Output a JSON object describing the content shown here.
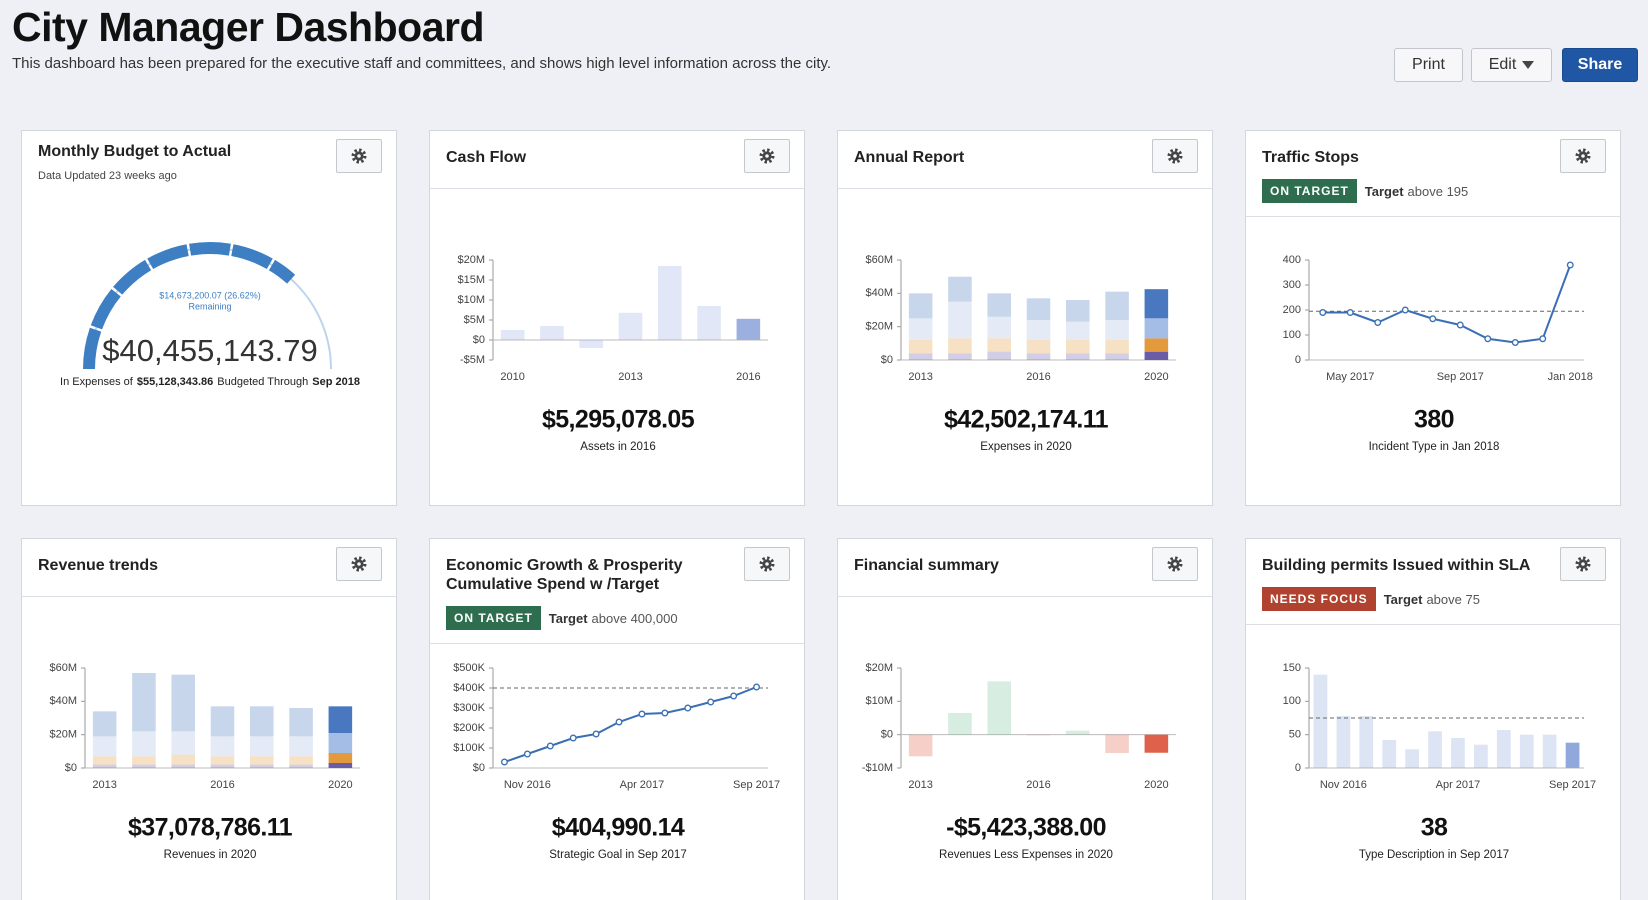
{
  "header": {
    "title": "City Manager Dashboard",
    "subtitle": "This dashboard has been prepared for the executive staff and committees, and shows high level information across the city."
  },
  "buttons": [
    "Print",
    "Edit",
    "Share"
  ],
  "cards": [
    {
      "type": "gauge",
      "title": "Monthly Budget to Actual",
      "subtitle": "Data Updated 23 weeks ago",
      "gauge": {
        "value": 40455143.79,
        "value_label": "$40,455,143.79",
        "max": 55128343.86,
        "max_label": "$55,128,343.86",
        "remaining_label": "$14,673,200.07 (26.62%)",
        "remaining_text": "Remaining",
        "color": "#3d7fc2",
        "track_color": "#bcd5ec"
      },
      "footnote": {
        "prefix": "In Expenses of",
        "middle": "Budgeted Through",
        "period": "Sep 2018"
      }
    },
    {
      "type": "bar",
      "title": "Cash Flow",
      "color": "#9cb0e0",
      "categories": [
        "2010",
        null,
        null,
        "2013",
        null,
        null,
        "2016"
      ],
      "values": [
        2500000,
        3500000,
        -2000000,
        6800000,
        18500000,
        8500000,
        5295078.05
      ],
      "ylim": [
        -5000000,
        20000000
      ],
      "yticks": [
        {
          "value": -5000000,
          "label": "-$5M"
        },
        {
          "value": 0,
          "label": "$0"
        },
        {
          "value": 5000000,
          "label": "$5M"
        },
        {
          "value": 10000000,
          "label": "$10M"
        },
        {
          "value": 15000000,
          "label": "$15M"
        },
        {
          "value": 20000000,
          "label": "$20M"
        }
      ],
      "kpi": "$5,295,078.05",
      "kpi_caption": "Assets in 2016"
    },
    {
      "type": "stacked-bar",
      "title": "Annual Report",
      "categories": [
        "2013",
        null,
        null,
        "2016",
        null,
        null,
        "2020"
      ],
      "series": [
        {
          "color": "#6b5ca8",
          "values": [
            4000000,
            4000000,
            5000000,
            4000000,
            4000000,
            4000000,
            5000000
          ]
        },
        {
          "color": "#e39a3d",
          "values": [
            8000000,
            9000000,
            8000000,
            8000000,
            8000000,
            8000000,
            8000000
          ]
        },
        {
          "color": "#a4bde6",
          "values": [
            13000000,
            22000000,
            13000000,
            12000000,
            11000000,
            12000000,
            12000000
          ]
        },
        {
          "color": "#4a78c0",
          "values": [
            15000000,
            15000000,
            14000000,
            13000000,
            13000000,
            17000000,
            17500000
          ]
        }
      ],
      "ylim": [
        0,
        60000000
      ],
      "yticks": [
        {
          "value": 0,
          "label": "$0"
        },
        {
          "value": 20000000,
          "label": "$20M"
        },
        {
          "value": 40000000,
          "label": "$40M"
        },
        {
          "value": 60000000,
          "label": "$60M"
        }
      ],
      "kpi": "$42,502,174.11",
      "kpi_caption": "Expenses in 2020"
    },
    {
      "type": "line",
      "title": "Traffic Stops",
      "status": "ON TARGET",
      "status_color": "#2e6e4e",
      "target_text": "Target",
      "target": {
        "value": 195,
        "label": "above 195"
      },
      "color": "#3a6fb5",
      "categories": [
        null,
        "May 2017",
        null,
        null,
        null,
        "Sep 2017",
        null,
        null,
        null,
        "Jan 2018"
      ],
      "values": [
        190,
        190,
        150,
        200,
        165,
        140,
        85,
        70,
        85,
        380
      ],
      "ylim": [
        0,
        400
      ],
      "yticks": [
        0,
        100,
        200,
        300,
        400
      ],
      "kpi": "380",
      "kpi_caption": "Incident Type in Jan 2018"
    },
    {
      "type": "stacked-bar",
      "title": "Revenue trends",
      "categories": [
        "2013",
        null,
        null,
        "2016",
        null,
        null,
        "2020"
      ],
      "series": [
        {
          "color": "#6b5ca8",
          "values": [
            2000000,
            2000000,
            2000000,
            2000000,
            2000000,
            2000000,
            3000000
          ]
        },
        {
          "color": "#e39a3d",
          "values": [
            5000000,
            5000000,
            6000000,
            5000000,
            5000000,
            5000000,
            6000000
          ]
        },
        {
          "color": "#a4bde6",
          "values": [
            12000000,
            15000000,
            14000000,
            12000000,
            12000000,
            12000000,
            12000000
          ]
        },
        {
          "color": "#4a78c0",
          "values": [
            15000000,
            35000000,
            34000000,
            18000000,
            18000000,
            17000000,
            16000000
          ]
        }
      ],
      "ylim": [
        0,
        60000000
      ],
      "yticks": [
        {
          "value": 0,
          "label": "$0"
        },
        {
          "value": 20000000,
          "label": "$20M"
        },
        {
          "value": 40000000,
          "label": "$40M"
        },
        {
          "value": 60000000,
          "label": "$60M"
        }
      ],
      "kpi": "$37,078,786.11",
      "kpi_caption": "Revenues in 2020"
    },
    {
      "type": "line",
      "title": "Economic Growth & Prosperity Cumulative Spend w /Target",
      "status": "ON TARGET",
      "status_color": "#2e6e4e",
      "target_text": "Target",
      "target": {
        "value": 400000,
        "label": "above 400,000"
      },
      "color": "#3a6fb5",
      "categories": [
        null,
        "Nov 2016",
        null,
        null,
        null,
        null,
        "Apr 2017",
        null,
        null,
        null,
        null,
        "Sep 2017"
      ],
      "values": [
        30000,
        70000,
        110000,
        150000,
        170000,
        230000,
        270000,
        275000,
        300000,
        330000,
        360000,
        404990.14
      ],
      "ylim": [
        0,
        500000
      ],
      "yticks": [
        {
          "value": 0,
          "label": "$0"
        },
        {
          "value": 100000,
          "label": "$100K"
        },
        {
          "value": 200000,
          "label": "$200K"
        },
        {
          "value": 300000,
          "label": "$300K"
        },
        {
          "value": 400000,
          "label": "$400K"
        },
        {
          "value": 500000,
          "label": "$500K"
        }
      ],
      "kpi": "$404,990.14",
      "kpi_caption": "Strategic Goal in Sep 2017"
    },
    {
      "type": "bar",
      "title": "Financial summary",
      "color_positive": "#7cc4a0",
      "color_negative": "#e0614b",
      "categories": [
        "2013",
        null,
        null,
        "2016",
        null,
        null,
        "2020"
      ],
      "values": [
        -6500000,
        6500000,
        16000000,
        -200000,
        1200000,
        -5500000,
        -5423388
      ],
      "ylim": [
        -10000000,
        20000000
      ],
      "yticks": [
        {
          "value": -10000000,
          "label": "-$10M"
        },
        {
          "value": 0,
          "label": "$0"
        },
        {
          "value": 10000000,
          "label": "$10M"
        },
        {
          "value": 20000000,
          "label": "$20M"
        }
      ],
      "kpi": "-$5,423,388.00",
      "kpi_caption": "Revenues Less Expenses in 2020"
    },
    {
      "type": "bar",
      "title": "Building permits Issued within SLA",
      "status": "NEEDS FOCUS",
      "status_color": "#b0432f",
      "target_text": "Target",
      "target": {
        "value": 75,
        "label": "above 75"
      },
      "color": "#90a8dc",
      "categories": [
        null,
        "Nov 2016",
        null,
        null,
        null,
        null,
        "Apr 2017",
        null,
        null,
        null,
        null,
        "Sep 2017"
      ],
      "values": [
        140,
        78,
        78,
        42,
        28,
        55,
        45,
        35,
        57,
        50,
        50,
        38
      ],
      "ylim": [
        0,
        150
      ],
      "yticks": [
        0,
        50,
        100,
        150
      ],
      "kpi": "38",
      "kpi_caption": "Type Description in Sep 2017"
    }
  ]
}
